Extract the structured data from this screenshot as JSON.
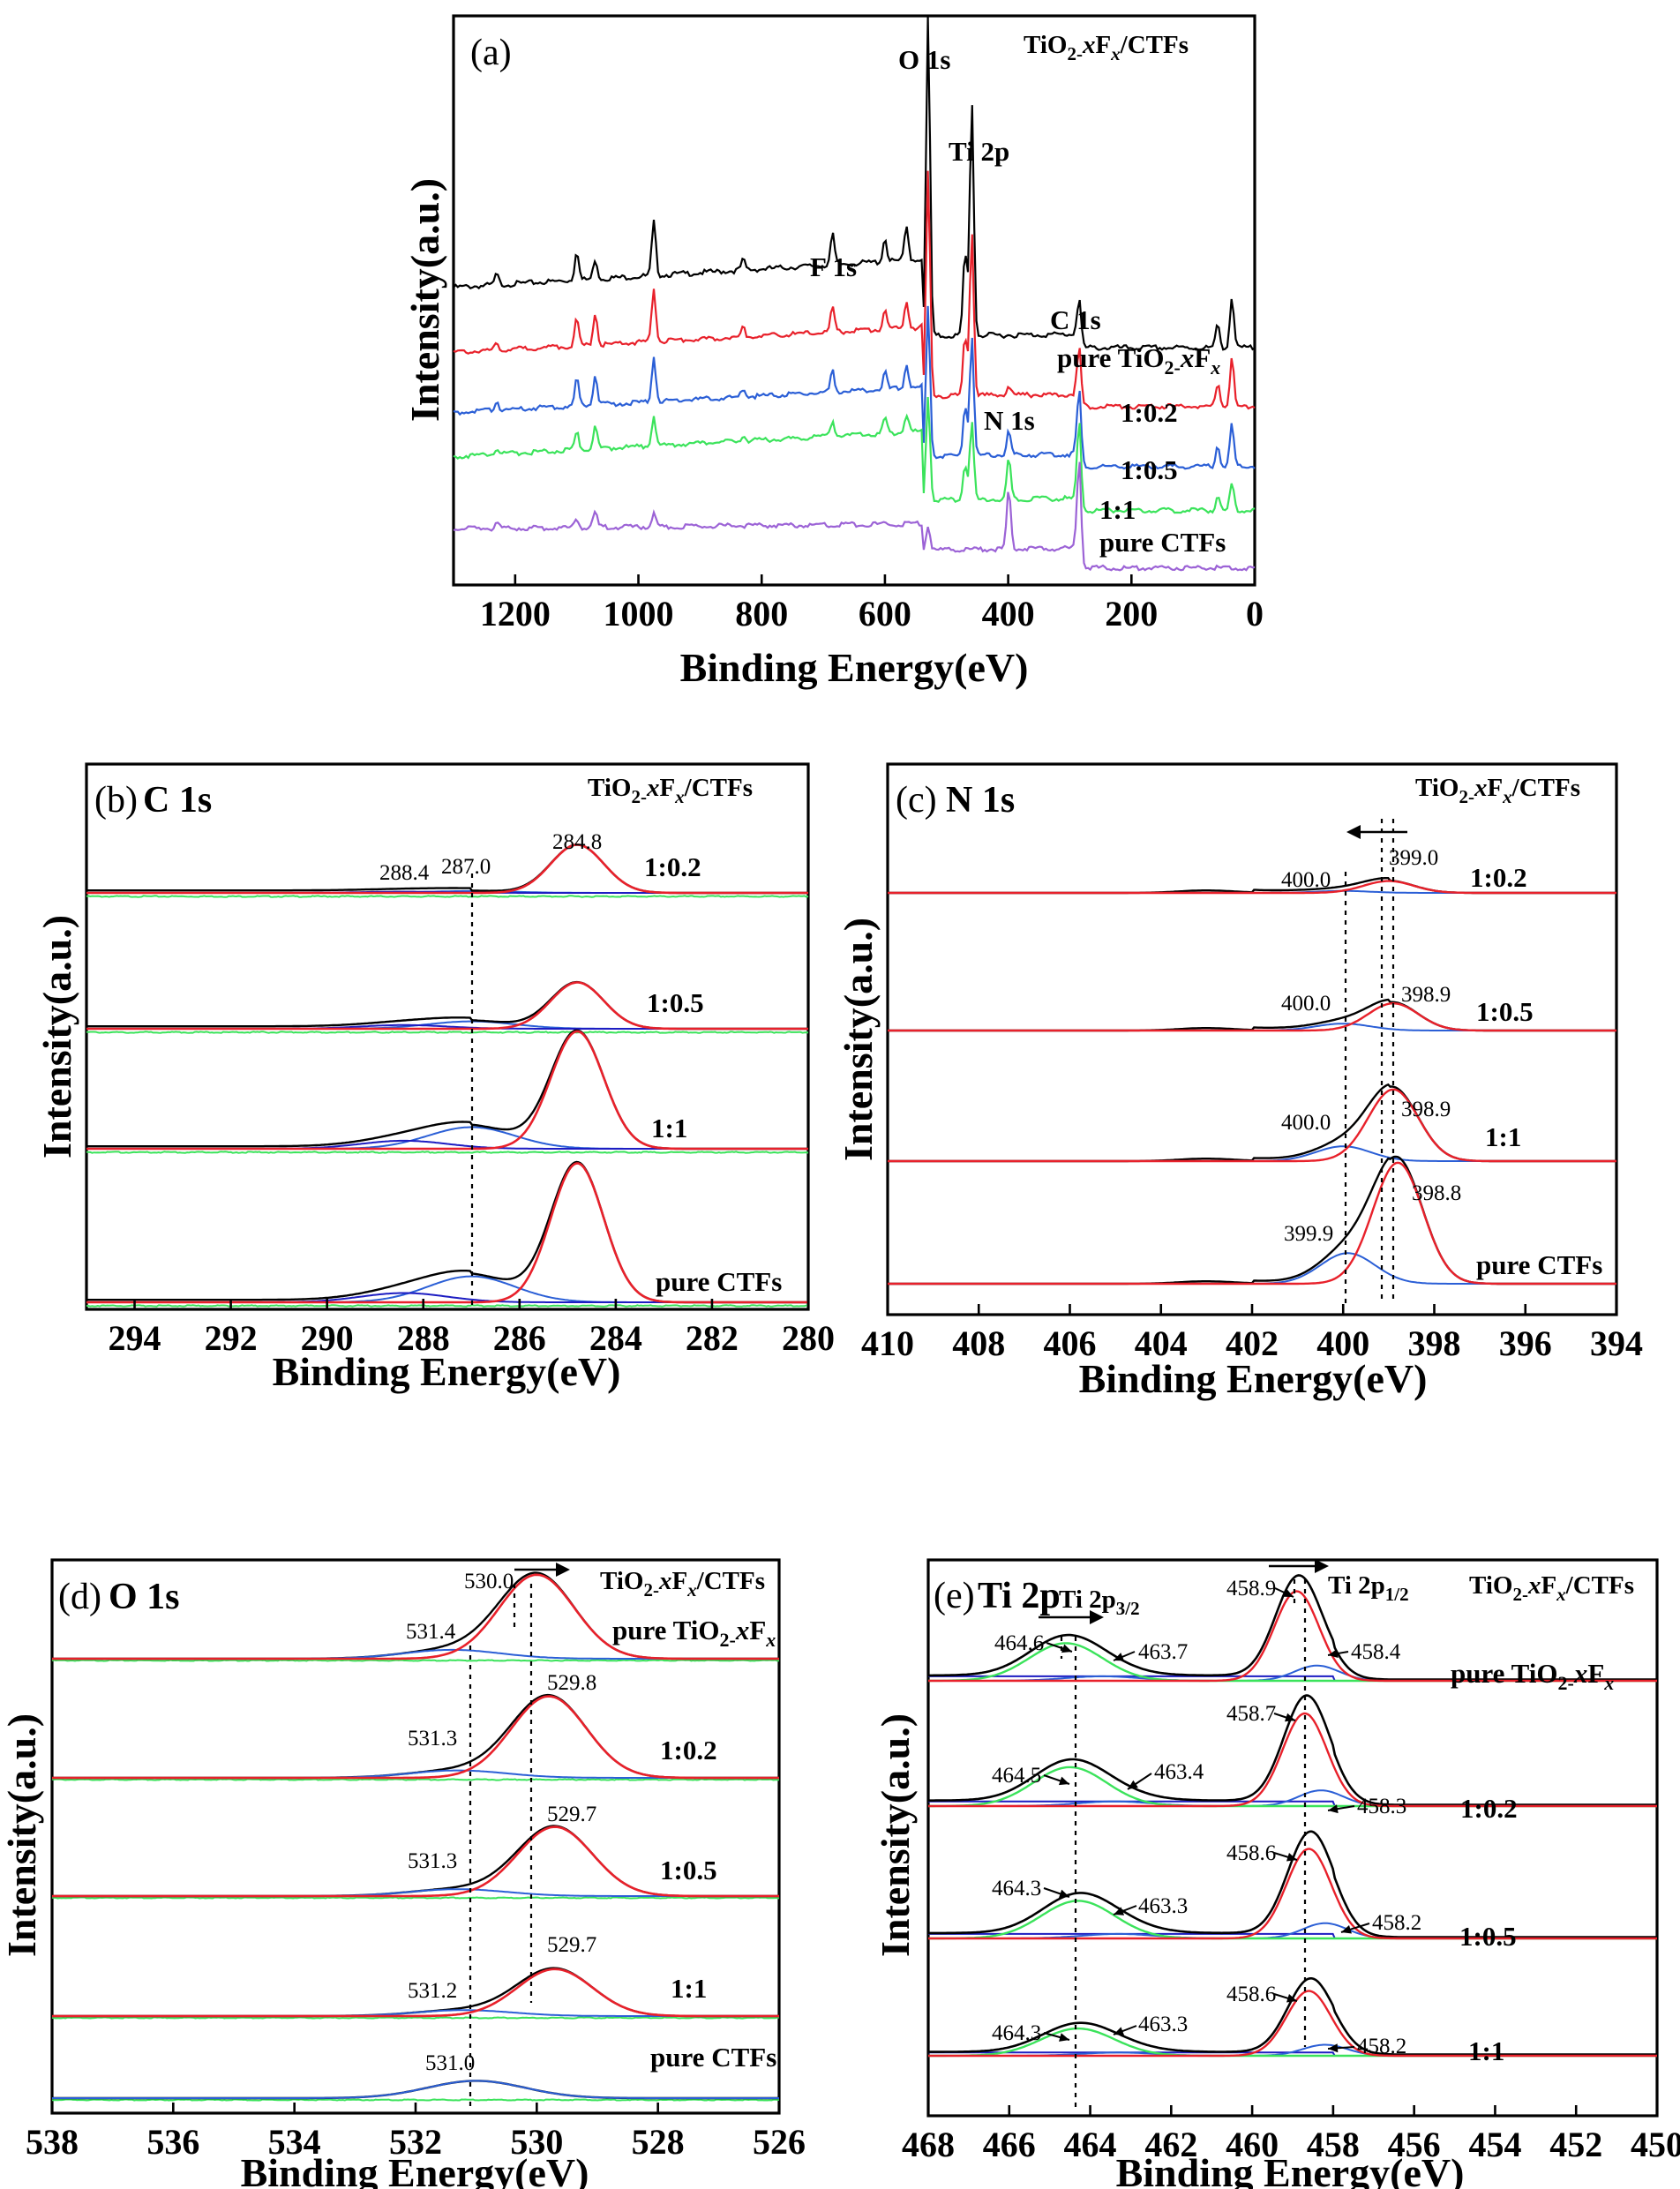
{
  "colors": {
    "black": "#000000",
    "red": "#e8212b",
    "blue": "#2b5fd6",
    "green": "#3be35b",
    "purple": "#9c63d6",
    "navy": "#1d1dc2"
  },
  "chart_data": [
    {
      "panel": "(a)",
      "type": "line",
      "title": "TiO2-xFx/CTFs",
      "xlabel": "Binding Energy(eV)",
      "ylabel": "Intensity(a.u.)",
      "xlim": [
        1300,
        0
      ],
      "reversed_x": true,
      "x_ticks": [
        1200,
        1000,
        800,
        600,
        400,
        200,
        0
      ],
      "peak_labels": [
        {
          "text": "O 1s",
          "x": 530
        },
        {
          "text": "Ti 2p",
          "x": 459
        },
        {
          "text": "F 1s",
          "x": 685
        },
        {
          "text": "C 1s",
          "x": 285
        },
        {
          "text": "N 1s",
          "x": 399
        }
      ],
      "series": [
        {
          "name": "pure TiO2-xFx",
          "color": "black",
          "offset": 4,
          "peaks": [
            [
              1230,
              0.3
            ],
            [
              1100,
              0.9
            ],
            [
              1070,
              0.6
            ],
            [
              975,
              1.6
            ],
            [
              830,
              0.3
            ],
            [
              685,
              0.9
            ],
            [
              600,
              0.7
            ],
            [
              565,
              1.0
            ],
            [
              530,
              9.5
            ],
            [
              470,
              2.5
            ],
            [
              459,
              7.0
            ],
            [
              285,
              1.5
            ],
            [
              60,
              0.7
            ],
            [
              37,
              1.5
            ]
          ]
        },
        {
          "name": "1:0.2",
          "color": "red",
          "offset": 3,
          "peaks": [
            [
              1230,
              0.3
            ],
            [
              1100,
              0.9
            ],
            [
              1070,
              1.1
            ],
            [
              975,
              1.8
            ],
            [
              830,
              0.3
            ],
            [
              685,
              0.8
            ],
            [
              600,
              0.7
            ],
            [
              565,
              0.9
            ],
            [
              530,
              7.5
            ],
            [
              470,
              2.0
            ],
            [
              459,
              5.5
            ],
            [
              399,
              0.3
            ],
            [
              285,
              2.0
            ],
            [
              60,
              0.8
            ],
            [
              37,
              1.6
            ]
          ]
        },
        {
          "name": "1:0.5",
          "color": "blue",
          "offset": 2,
          "peaks": [
            [
              1230,
              0.3
            ],
            [
              1100,
              0.9
            ],
            [
              1070,
              1.0
            ],
            [
              975,
              1.5
            ],
            [
              830,
              0.3
            ],
            [
              685,
              0.7
            ],
            [
              600,
              0.6
            ],
            [
              565,
              0.8
            ],
            [
              530,
              5.0
            ],
            [
              470,
              1.7
            ],
            [
              459,
              4.0
            ],
            [
              399,
              0.8
            ],
            [
              285,
              2.6
            ],
            [
              60,
              0.7
            ],
            [
              37,
              1.4
            ]
          ]
        },
        {
          "name": "1:1",
          "color": "green",
          "offset": 1,
          "peaks": [
            [
              1230,
              0.2
            ],
            [
              1100,
              0.6
            ],
            [
              1070,
              0.8
            ],
            [
              975,
              1.0
            ],
            [
              830,
              0.2
            ],
            [
              685,
              0.5
            ],
            [
              600,
              0.5
            ],
            [
              565,
              0.6
            ],
            [
              530,
              3.5
            ],
            [
              470,
              1.2
            ],
            [
              459,
              2.6
            ],
            [
              399,
              1.4
            ],
            [
              285,
              3.0
            ],
            [
              60,
              0.5
            ],
            [
              37,
              0.9
            ]
          ]
        },
        {
          "name": "pure CTFs",
          "color": "purple",
          "offset": 0,
          "peaks": [
            [
              1230,
              0.2
            ],
            [
              1100,
              0.3
            ],
            [
              1070,
              0.5
            ],
            [
              975,
              0.4
            ],
            [
              530,
              0.8
            ],
            [
              399,
              2.0
            ],
            [
              285,
              3.8
            ]
          ]
        }
      ]
    },
    {
      "panel": "(b)",
      "type": "line",
      "title": "TiO2-xFx/CTFs",
      "element": "C 1s",
      "xlabel": "Binding Energy(eV)",
      "ylabel": "Intensity(a.u.)",
      "xlim": [
        295,
        280
      ],
      "reversed_x": true,
      "x_ticks": [
        294,
        292,
        290,
        288,
        286,
        284,
        282,
        280
      ],
      "peak_values": [
        "288.4",
        "287.0",
        "284.8"
      ],
      "guide_line": 287.0,
      "series": [
        {
          "name": "1:0.2",
          "fit_peaks": [
            [
              284.8,
              0.55,
              0.78
            ],
            [
              287.0,
              0.9,
              0.03
            ],
            [
              288.4,
              0.9,
              0.02
            ]
          ]
        },
        {
          "name": "1:0.5",
          "fit_peaks": [
            [
              284.8,
              0.55,
              0.75
            ],
            [
              287.0,
              0.9,
              0.12
            ],
            [
              288.4,
              0.9,
              0.06
            ]
          ]
        },
        {
          "name": "1:1",
          "fit_peaks": [
            [
              284.8,
              0.55,
              1.9
            ],
            [
              287.0,
              0.9,
              0.35
            ],
            [
              288.4,
              0.9,
              0.13
            ]
          ]
        },
        {
          "name": "pure CTFs",
          "fit_peaks": [
            [
              284.8,
              0.55,
              2.25
            ],
            [
              287.0,
              0.9,
              0.42
            ],
            [
              288.4,
              0.9,
              0.15
            ]
          ]
        }
      ]
    },
    {
      "panel": "(c)",
      "type": "line",
      "title": "TiO2-xFx/CTFs",
      "element": "N 1s",
      "xlabel": "Binding Energy(eV)",
      "ylabel": "Intensity(a.u.)",
      "xlim": [
        410,
        394
      ],
      "reversed_x": true,
      "x_ticks": [
        410,
        408,
        406,
        404,
        402,
        400,
        398,
        396,
        394
      ],
      "guide_lines": [
        400.0,
        399.0
      ],
      "series": [
        {
          "name": "1:0.2",
          "labels": [
            "400.0",
            "399.0"
          ],
          "fit_peaks": [
            [
              399.0,
              0.55,
              0.24
            ],
            [
              400.0,
              0.6,
              0.04
            ]
          ]
        },
        {
          "name": "1:0.5",
          "labels": [
            "400.0",
            "398.9"
          ],
          "fit_peaks": [
            [
              398.9,
              0.55,
              0.55
            ],
            [
              400.0,
              0.6,
              0.14
            ]
          ]
        },
        {
          "name": "1:1",
          "labels": [
            "400.0",
            "398.9"
          ],
          "fit_peaks": [
            [
              398.9,
              0.55,
              1.45
            ],
            [
              400.0,
              0.6,
              0.3
            ]
          ]
        },
        {
          "name": "pure CTFs",
          "labels": [
            "399.9",
            "398.8"
          ],
          "fit_peaks": [
            [
              398.8,
              0.55,
              2.45
            ],
            [
              399.9,
              0.6,
              0.62
            ]
          ]
        }
      ]
    },
    {
      "panel": "(d)",
      "type": "line",
      "title": "TiO2-xFx/CTFs",
      "element": "O 1s",
      "xlabel": "Binding Energy(eV)",
      "ylabel": "Intensity(a.u.)",
      "xlim": [
        538,
        526
      ],
      "reversed_x": true,
      "x_ticks": [
        538,
        536,
        534,
        532,
        530,
        528,
        526
      ],
      "guide_lines": [
        531.0,
        529.7
      ],
      "series": [
        {
          "name": "pure TiO2-xFx",
          "labels": [
            "531.4",
            "530.0"
          ],
          "fit_peaks": [
            [
              530.0,
              0.62,
              1.7
            ],
            [
              531.4,
              0.8,
              0.18
            ]
          ]
        },
        {
          "name": "1:0.2",
          "labels": [
            "531.3",
            "529.8"
          ],
          "fit_peaks": [
            [
              529.8,
              0.62,
              1.65
            ],
            [
              531.3,
              0.8,
              0.15
            ]
          ]
        },
        {
          "name": "1:0.5",
          "labels": [
            "531.3",
            "529.7"
          ],
          "fit_peaks": [
            [
              529.7,
              0.62,
              1.4
            ],
            [
              531.3,
              0.8,
              0.14
            ]
          ]
        },
        {
          "name": "1:1",
          "labels": [
            "531.2",
            "529.7"
          ],
          "fit_peaks": [
            [
              529.7,
              0.62,
              0.95
            ],
            [
              531.2,
              0.8,
              0.12
            ]
          ]
        },
        {
          "name": "pure CTFs",
          "labels": [
            "531.0"
          ],
          "fit_peaks": [
            [
              531.0,
              0.8,
              0.35
            ]
          ]
        }
      ]
    },
    {
      "panel": "(e)",
      "type": "line",
      "title": "TiO2-xFx/CTFs",
      "element": "Ti 2p",
      "xlabel": "Binding Energy(eV)",
      "ylabel": "Intensity(a.u.)",
      "xlim": [
        468,
        450
      ],
      "reversed_x": true,
      "x_ticks": [
        468,
        466,
        464,
        462,
        460,
        458,
        456,
        454,
        452,
        450
      ],
      "guide_lines": [
        464.3,
        458.6
      ],
      "series": [
        {
          "name": "pure TiO2-xFx",
          "labels": [
            "464.6",
            "463.7",
            "458.9",
            "458.4"
          ]
        },
        {
          "name": "1:0.2",
          "labels": [
            "464.5",
            "463.4",
            "458.7",
            "458.3"
          ]
        },
        {
          "name": "1:0.5",
          "labels": [
            "464.3",
            "463.3",
            "458.6",
            "458.2"
          ]
        },
        {
          "name": "1:1",
          "labels": [
            "464.3",
            "463.3",
            "458.6",
            "458.2"
          ]
        }
      ]
    }
  ]
}
